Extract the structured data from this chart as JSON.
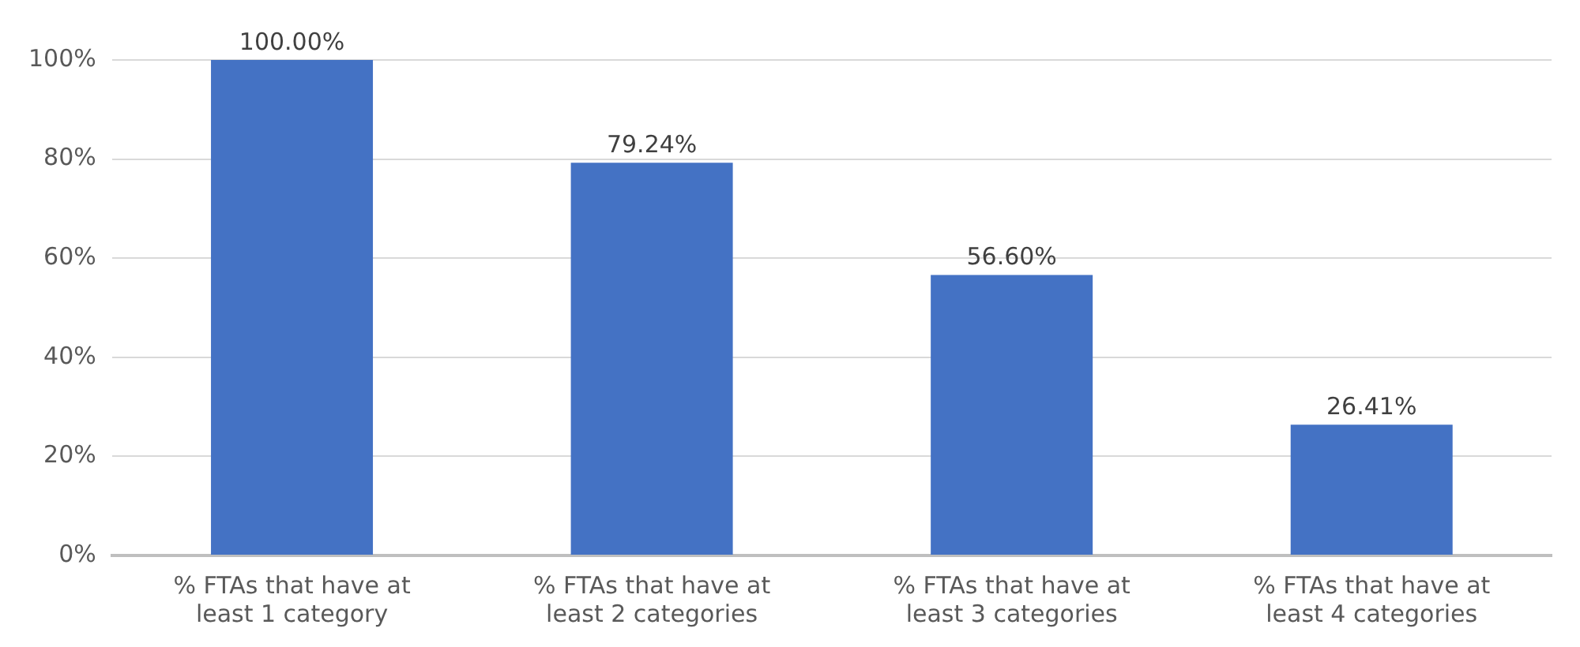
{
  "chart_data": {
    "type": "bar",
    "categories": [
      "% FTAs that have at least 1 category",
      "% FTAs that have at least 2 categories",
      "% FTAs that have at least 3 categories",
      "% FTAs that have at least 4 categories"
    ],
    "values": [
      100,
      79.24,
      56.6,
      26.41
    ],
    "value_labels": [
      "100.00%",
      "79.24%",
      "56.60%",
      "26.41%"
    ],
    "color": "#4472c4",
    "ylim": [
      0,
      100
    ],
    "yticks": [
      {
        "value": 0,
        "label": "0%"
      },
      {
        "value": 20,
        "label": "20%"
      },
      {
        "value": 40,
        "label": "40%"
      },
      {
        "value": 60,
        "label": "60%"
      },
      {
        "value": 80,
        "label": "80%"
      },
      {
        "value": 100,
        "label": "100%"
      }
    ],
    "grid": "y",
    "legend": false
  }
}
